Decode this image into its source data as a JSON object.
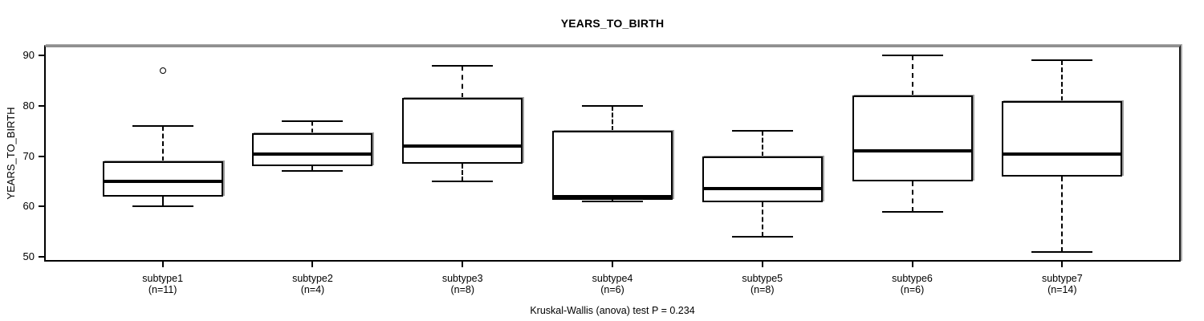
{
  "chart_data": {
    "type": "boxplot",
    "title": "YEARS_TO_BIRTH",
    "ylabel": "YEARS_TO_BIRTH",
    "xlabel": "",
    "ylim": [
      50,
      90
    ],
    "yticks": [
      50,
      60,
      70,
      80,
      90
    ],
    "grid": false,
    "annotation": "Kruskal-Wallis (anova) test P = 0.234",
    "categories": [
      "subtype1",
      "subtype2",
      "subtype3",
      "subtype4",
      "subtype5",
      "subtype6",
      "subtype7"
    ],
    "sample_sizes": [
      "(n=11)",
      "(n=4)",
      "(n=8)",
      "(n=6)",
      "(n=8)",
      "(n=6)",
      "(n=14)"
    ],
    "boxes": [
      {
        "label": "subtype1",
        "n_label": "(n=11)",
        "whisker_low": 60,
        "q1": 62,
        "median": 65,
        "q3": 69,
        "whisker_high": 76,
        "outliers": [
          87
        ]
      },
      {
        "label": "subtype2",
        "n_label": "(n=4)",
        "whisker_low": 67,
        "q1": 68,
        "median": 70.5,
        "q3": 74.5,
        "whisker_high": 77,
        "outliers": []
      },
      {
        "label": "subtype3",
        "n_label": "(n=8)",
        "whisker_low": 65,
        "q1": 68.5,
        "median": 72,
        "q3": 81.5,
        "whisker_high": 88,
        "outliers": []
      },
      {
        "label": "subtype4",
        "n_label": "(n=6)",
        "whisker_low": 61,
        "q1": 61.3,
        "median": 62,
        "q3": 75,
        "whisker_high": 80,
        "outliers": []
      },
      {
        "label": "subtype5",
        "n_label": "(n=8)",
        "whisker_low": 54,
        "q1": 60.8,
        "median": 63.5,
        "q3": 70,
        "whisker_high": 75,
        "outliers": []
      },
      {
        "label": "subtype6",
        "n_label": "(n=6)",
        "whisker_low": 59,
        "q1": 65,
        "median": 71,
        "q3": 82,
        "whisker_high": 90,
        "outliers": []
      },
      {
        "label": "subtype7",
        "n_label": "(n=14)",
        "whisker_low": 51,
        "q1": 66,
        "median": 70.5,
        "q3": 81,
        "whisker_high": 89,
        "outliers": []
      }
    ]
  },
  "colors": {
    "box_border": "#000000",
    "box_fill": "#ffffff",
    "median": "#000000",
    "frame_shadow": "#8f8f8f",
    "background": "#ffffff"
  }
}
